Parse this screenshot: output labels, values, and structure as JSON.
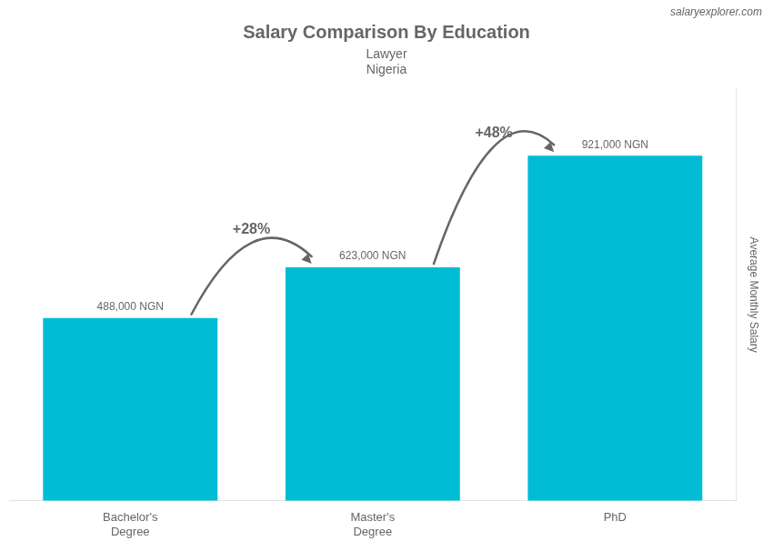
{
  "chart_data": {
    "type": "bar",
    "title": "Salary Comparison By Education",
    "subtitle": [
      "Lawyer",
      "Nigeria"
    ],
    "watermark": "salaryexplorer.com",
    "ylabel": "Average Monthly Salary",
    "categories": [
      "Bachelor's\nDegree",
      "Master's\nDegree",
      "PhD"
    ],
    "values": [
      488000,
      623000,
      921000
    ],
    "value_labels": [
      "488,000 NGN",
      "623,000 NGN",
      "921,000 NGN"
    ],
    "data_labels": true,
    "annotations": [
      "+28%",
      "+48%"
    ],
    "color": "#00bcd4",
    "ylim": [
      0,
      1100000
    ],
    "grid": false,
    "tick_labels": "x"
  }
}
